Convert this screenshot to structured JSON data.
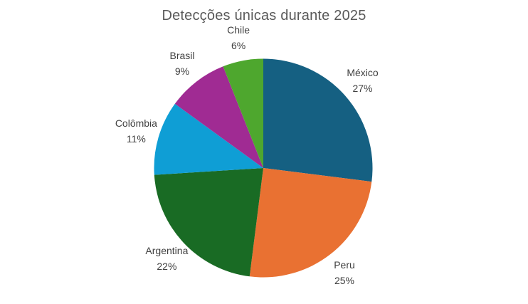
{
  "chart_data": {
    "type": "pie",
    "title": "Detecções únicas durante 2025",
    "legend": "none",
    "label_style": "category name + percentage, outside slices",
    "start_angle_deg": 0,
    "direction": "clockwise",
    "title_color": "#595959",
    "label_color": "#404040",
    "background_color": "#ffffff",
    "categories": [
      "México",
      "Peru",
      "Argentina",
      "Colômbia",
      "Brasil",
      "Chile"
    ],
    "values": [
      27,
      25,
      22,
      11,
      9,
      6
    ],
    "slices": [
      {
        "label": "México",
        "value": 27,
        "pct_label": "27%",
        "color": "#156082"
      },
      {
        "label": "Peru",
        "value": 25,
        "pct_label": "25%",
        "color": "#E97132"
      },
      {
        "label": "Argentina",
        "value": 22,
        "pct_label": "22%",
        "color": "#196B24"
      },
      {
        "label": "Colômbia",
        "value": 11,
        "pct_label": "11%",
        "color": "#0F9ED5"
      },
      {
        "label": "Brasil",
        "value": 9,
        "pct_label": "9%",
        "color": "#A02B93"
      },
      {
        "label": "Chile",
        "value": 6,
        "pct_label": "6%",
        "color": "#4EA72E"
      }
    ]
  }
}
